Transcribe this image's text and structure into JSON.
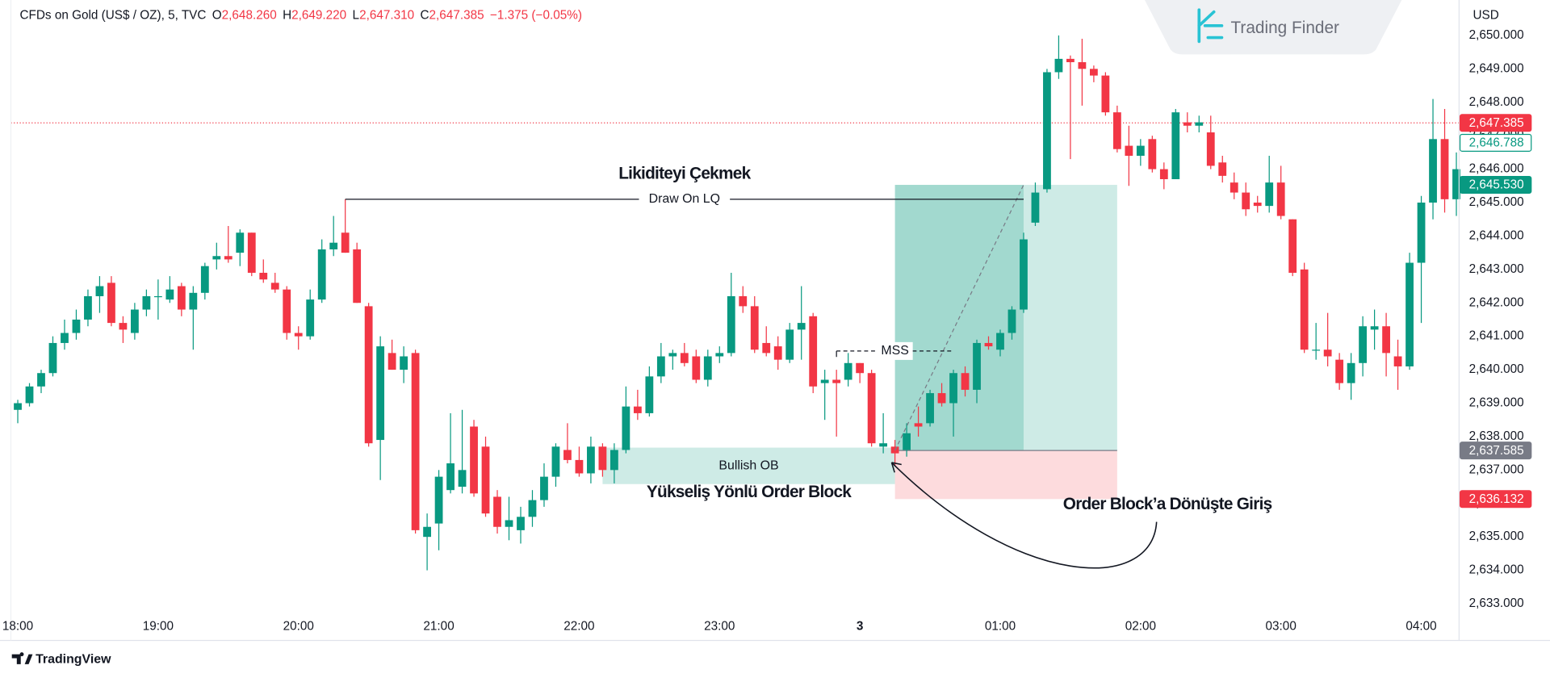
{
  "chart_data": {
    "type": "candlestick",
    "title": "CFDs on Gold (US$ / OZ), 5, TVC",
    "ohlc": [
      {
        "key": "O",
        "value": "2,648.260"
      },
      {
        "key": "H",
        "value": "2,649.220"
      },
      {
        "key": "L",
        "value": "2,647.310"
      },
      {
        "key": "C",
        "value": "2,647.385"
      }
    ],
    "change": "−1.375 (−0.05%)",
    "currency": "USD",
    "up_color": "#089981",
    "down_color": "#f23645",
    "x": [
      0,
      1,
      2,
      3,
      4,
      5,
      6,
      7,
      8,
      9,
      10,
      11,
      12,
      13,
      14,
      15,
      16,
      17,
      18,
      19,
      20,
      21,
      22,
      23,
      24,
      25,
      26,
      27,
      28,
      29,
      30,
      31,
      32,
      33,
      34,
      35,
      36,
      37,
      38,
      39,
      40,
      41,
      42,
      43,
      44,
      45,
      46,
      47,
      48,
      49,
      50,
      51,
      52,
      53,
      54,
      55,
      56,
      57,
      58,
      59,
      60,
      61,
      62,
      63,
      64,
      65,
      66,
      67,
      68,
      69,
      70,
      71,
      72,
      73,
      74,
      75,
      76,
      77,
      78,
      79,
      80,
      81,
      82,
      83,
      84,
      85,
      86,
      87,
      88,
      89,
      90,
      91,
      92,
      93,
      94,
      95,
      96,
      97,
      98,
      99,
      100,
      101,
      102,
      103,
      104,
      105,
      106,
      107,
      108,
      109,
      110,
      111,
      112,
      113,
      114,
      115,
      116,
      117,
      118,
      119,
      120,
      121,
      122,
      123
    ],
    "open": [
      2638.8,
      2639.0,
      2639.5,
      2639.9,
      2640.8,
      2641.1,
      2641.5,
      2642.2,
      2642.6,
      2641.4,
      2641.1,
      2641.8,
      2642.2,
      2642.1,
      2642.5,
      2641.8,
      2642.3,
      2643.3,
      2643.4,
      2643.5,
      2644.1,
      2642.9,
      2642.6,
      2642.4,
      2641.1,
      2641.0,
      2642.1,
      2643.6,
      2644.1,
      2643.6,
      2641.9,
      2637.9,
      2640.5,
      2640.0,
      2640.5,
      2635.0,
      2635.4,
      2636.4,
      2636.5,
      2638.3,
      2637.7,
      2636.2,
      2635.3,
      2635.2,
      2635.6,
      2636.1,
      2636.8,
      2637.6,
      2637.3,
      2636.9,
      2637.7,
      2637.0,
      2637.6,
      2638.9,
      2638.7,
      2639.8,
      2640.4,
      2640.5,
      2640.4,
      2639.7,
      2640.4,
      2640.5,
      2642.2,
      2641.9,
      2640.8,
      2640.7,
      2640.3,
      2641.2,
      2641.6,
      2639.6,
      2639.7,
      2639.7,
      2640.2,
      2639.9,
      2637.7,
      2637.7,
      2637.6,
      2638.4,
      2638.4,
      2639.3,
      2639.0,
      2639.9,
      2639.4,
      2640.8,
      2640.6,
      2641.1,
      2641.8,
      2644.4,
      2645.4,
      2648.9,
      2649.3,
      2649.2,
      2649.0,
      2648.8,
      2647.7,
      2646.7,
      2646.4,
      2646.9,
      2646.0,
      2645.7,
      2647.4,
      2647.3,
      2647.1,
      2646.2,
      2645.6,
      2645.3,
      2645.0,
      2644.9,
      2645.6,
      2644.5,
      2643.0,
      2640.6,
      2640.6,
      2640.3,
      2639.6,
      2640.2,
      2641.2,
      2641.3,
      2640.4,
      2640.1,
      2643.2,
      2645.0,
      2646.9,
      2645.1
    ],
    "high": [
      2639.1,
      2639.6,
      2640.0,
      2641.0,
      2641.5,
      2641.8,
      2642.4,
      2642.8,
      2642.8,
      2641.6,
      2642.0,
      2642.4,
      2642.7,
      2642.8,
      2642.6,
      2642.5,
      2643.2,
      2643.8,
      2644.3,
      2644.2,
      2644.1,
      2643.3,
      2642.9,
      2642.5,
      2641.3,
      2642.4,
      2643.9,
      2644.6,
      2645.1,
      2643.8,
      2642.0,
      2641.0,
      2640.9,
      2640.7,
      2640.6,
      2635.7,
      2637.0,
      2638.7,
      2638.8,
      2638.5,
      2638.0,
      2636.4,
      2636.2,
      2635.9,
      2636.4,
      2637.2,
      2637.8,
      2638.4,
      2637.7,
      2638.0,
      2637.8,
      2637.8,
      2639.5,
      2639.4,
      2640.1,
      2640.8,
      2640.6,
      2640.8,
      2640.6,
      2640.6,
      2640.7,
      2642.9,
      2642.5,
      2642.2,
      2641.3,
      2641.0,
      2641.4,
      2642.5,
      2641.7,
      2640.0,
      2640.0,
      2640.5,
      2640.2,
      2640.0,
      2638.7,
      2637.9,
      2638.4,
      2638.9,
      2639.4,
      2639.6,
      2640.0,
      2640.1,
      2640.9,
      2641.0,
      2641.2,
      2641.9,
      2644.1,
      2645.6,
      2649.0,
      2650.0,
      2649.4,
      2649.9,
      2649.1,
      2648.9,
      2647.9,
      2647.3,
      2646.9,
      2647.0,
      2646.2,
      2647.8,
      2647.7,
      2647.6,
      2647.6,
      2646.4,
      2645.9,
      2645.6,
      2645.2,
      2646.4,
      2646.1,
      2644.5,
      2643.2,
      2641.4,
      2641.7,
      2640.5,
      2640.5,
      2641.6,
      2641.8,
      2641.7,
      2640.9,
      2643.5,
      2645.2,
      2648.1,
      2647.8,
      2646.5
    ],
    "low": [
      2638.4,
      2638.9,
      2639.3,
      2639.8,
      2640.6,
      2640.9,
      2641.3,
      2641.7,
      2641.3,
      2640.8,
      2640.9,
      2641.6,
      2641.5,
      2642.0,
      2641.6,
      2640.6,
      2642.1,
      2643.0,
      2643.2,
      2643.1,
      2642.8,
      2642.6,
      2642.3,
      2640.9,
      2640.6,
      2640.9,
      2642.0,
      2643.4,
      2643.5,
      2642.0,
      2637.7,
      2636.7,
      2640.0,
      2639.6,
      2635.1,
      2634.0,
      2634.6,
      2636.3,
      2636.3,
      2636.2,
      2635.6,
      2635.1,
      2634.9,
      2634.8,
      2635.3,
      2635.9,
      2636.5,
      2637.2,
      2636.8,
      2636.6,
      2636.8,
      2636.6,
      2637.5,
      2638.5,
      2638.6,
      2639.6,
      2640.0,
      2640.1,
      2639.6,
      2639.5,
      2640.2,
      2640.4,
      2641.7,
      2640.5,
      2640.4,
      2640.0,
      2640.2,
      2640.3,
      2639.3,
      2638.5,
      2638.0,
      2639.5,
      2639.6,
      2637.7,
      2637.5,
      2637.1,
      2637.4,
      2638.0,
      2638.3,
      2638.9,
      2638.0,
      2639.2,
      2639.0,
      2640.6,
      2640.4,
      2640.9,
      2641.7,
      2644.3,
      2645.3,
      2648.7,
      2646.3,
      2647.9,
      2648.6,
      2647.6,
      2646.5,
      2645.5,
      2646.1,
      2645.9,
      2645.4,
      2645.7,
      2647.1,
      2647.1,
      2646.0,
      2645.6,
      2645.1,
      2644.6,
      2644.7,
      2644.7,
      2644.5,
      2642.8,
      2640.5,
      2640.3,
      2640.1,
      2639.4,
      2639.1,
      2639.8,
      2640.6,
      2639.8,
      2639.4,
      2640.0,
      2641.4,
      2644.5,
      2644.7,
      2644.6
    ],
    "close": [
      2639.0,
      2639.5,
      2639.9,
      2640.8,
      2641.1,
      2641.5,
      2642.2,
      2642.5,
      2641.4,
      2641.2,
      2641.8,
      2642.2,
      2642.2,
      2642.4,
      2641.8,
      2642.3,
      2643.1,
      2643.4,
      2643.3,
      2644.1,
      2642.9,
      2642.7,
      2642.4,
      2641.1,
      2641.0,
      2642.1,
      2643.6,
      2643.8,
      2643.5,
      2642.0,
      2637.8,
      2640.7,
      2640.0,
      2640.4,
      2635.2,
      2635.3,
      2636.8,
      2637.2,
      2637.0,
      2636.3,
      2635.7,
      2635.3,
      2635.5,
      2635.6,
      2636.1,
      2636.8,
      2637.7,
      2637.3,
      2636.9,
      2637.7,
      2637.0,
      2637.6,
      2638.9,
      2638.7,
      2639.8,
      2640.4,
      2640.5,
      2640.2,
      2639.7,
      2640.4,
      2640.5,
      2642.2,
      2641.9,
      2640.6,
      2640.5,
      2640.3,
      2641.2,
      2641.4,
      2639.5,
      2639.7,
      2639.6,
      2640.2,
      2639.9,
      2637.8,
      2637.8,
      2637.5,
      2638.1,
      2638.3,
      2639.3,
      2639.0,
      2639.9,
      2639.4,
      2640.8,
      2640.7,
      2641.1,
      2641.8,
      2643.9,
      2645.3,
      2648.9,
      2649.3,
      2649.2,
      2649.0,
      2648.8,
      2647.7,
      2646.6,
      2646.4,
      2646.7,
      2646.0,
      2645.7,
      2647.7,
      2647.3,
      2647.4,
      2646.1,
      2645.8,
      2645.3,
      2644.8,
      2644.9,
      2645.6,
      2644.6,
      2642.9,
      2640.6,
      2640.6,
      2640.4,
      2639.6,
      2640.2,
      2641.3,
      2641.3,
      2640.5,
      2640.1,
      2643.2,
      2645.0,
      2646.9,
      2645.1,
      2646.0
    ],
    "xlim": [
      -0.59,
      123.23
    ],
    "xticks": [
      {
        "value": 0,
        "label": "18:00"
      },
      {
        "value": 12,
        "label": "19:00"
      },
      {
        "value": 24,
        "label": "20:00"
      },
      {
        "value": 36,
        "label": "21:00"
      },
      {
        "value": 48,
        "label": "22:00"
      },
      {
        "value": 60,
        "label": "23:00"
      },
      {
        "value": 72,
        "label": "3"
      },
      {
        "value": 84,
        "label": "01:00"
      },
      {
        "value": 96,
        "label": "02:00"
      },
      {
        "value": 108,
        "label": "03:00"
      },
      {
        "value": 120,
        "label": "04:00"
      }
    ],
    "ylim": [
      2632.73,
      2651.06
    ],
    "yticks": [
      {
        "value": 2633,
        "label": "2,633.000"
      },
      {
        "value": 2634,
        "label": "2,634.000"
      },
      {
        "value": 2635,
        "label": "2,635.000"
      },
      {
        "value": 2636,
        "label": "2,636.000"
      },
      {
        "value": 2637,
        "label": "2,637.000"
      },
      {
        "value": 2638,
        "label": "2,638.000"
      },
      {
        "value": 2639,
        "label": "2,639.000"
      },
      {
        "value": 2640,
        "label": "2,640.000"
      },
      {
        "value": 2641,
        "label": "2,641.000"
      },
      {
        "value": 2642,
        "label": "2,642.000"
      },
      {
        "value": 2643,
        "label": "2,643.000"
      },
      {
        "value": 2644,
        "label": "2,644.000"
      },
      {
        "value": 2645,
        "label": "2,645.000"
      },
      {
        "value": 2646,
        "label": "2,646.000"
      },
      {
        "value": 2647,
        "label": "2,647.000"
      },
      {
        "value": 2648,
        "label": "2,648.000"
      },
      {
        "value": 2649,
        "label": "2,649.000"
      },
      {
        "value": 2650,
        "label": "2,650.000"
      }
    ],
    "grid": false,
    "last_price": {
      "value": 2647.385,
      "label": "2,647.385"
    },
    "other_price": {
      "value": 2646.788,
      "label": "2,646.788"
    },
    "liquidity": {
      "title": "Likiditeyi Çekmek",
      "label": "Draw On LQ",
      "level": 2645.1,
      "x": [
        28,
        86
      ]
    },
    "mss": {
      "label": "MSS",
      "level": 2640.56,
      "x": [
        70,
        80
      ]
    },
    "order_block": {
      "label": "Bullish OB",
      "title": "Yükseliş Yönlü Order Block",
      "top": 2637.67,
      "bottom": 2636.58,
      "x": [
        50,
        75
      ]
    },
    "position": {
      "label": "Order Block’a Dönüşte Giriş",
      "x": [
        75,
        94
      ],
      "filled_x": 86,
      "target": {
        "value": 2645.53,
        "label": "2,645.530"
      },
      "entry": {
        "value": 2637.585,
        "label": "2,637.585"
      },
      "stop": {
        "value": 2636.132,
        "label": "2,636.132"
      }
    }
  },
  "brand": "Trading Finder",
  "footer": "TradingView"
}
